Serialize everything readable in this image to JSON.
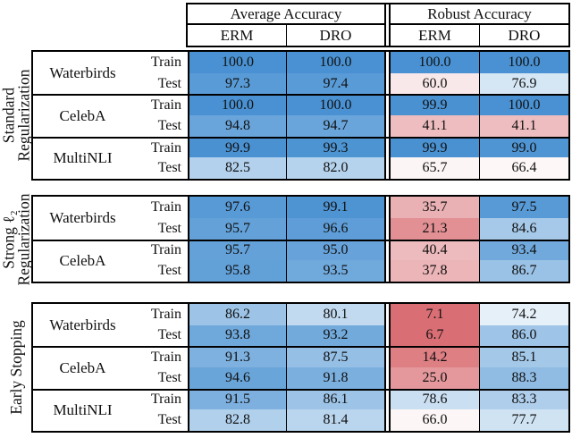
{
  "figure": {
    "header": {
      "average_label": "Average Accuracy",
      "robust_label": "Robust Accuracy",
      "erm_label": "ERM",
      "dro_label": "DRO"
    }
  },
  "chart_data": {
    "type": "table",
    "subtype": "heatmap-table",
    "column_groups": [
      "Average Accuracy",
      "Robust Accuracy"
    ],
    "columns": [
      "Average Accuracy ERM",
      "Average Accuracy DRO",
      "Robust Accuracy ERM",
      "Robust Accuracy DRO"
    ],
    "heatmap": {
      "midpoint": 70,
      "high_value": 100,
      "low_value": 0,
      "high_color": "#4991D2",
      "low_color": "#D55F65",
      "mid_color": "#FFFFFF"
    },
    "blocks": [
      {
        "group_label_lines": [
          "Standard",
          "Regularization"
        ],
        "datasets": [
          {
            "name": "Waterbirds",
            "rows": [
              {
                "split": "Train",
                "values": [
                  100.0,
                  100.0,
                  100.0,
                  100.0
                ]
              },
              {
                "split": "Test",
                "values": [
                  97.3,
                  97.4,
                  60.0,
                  76.9
                ]
              }
            ]
          },
          {
            "name": "CelebA",
            "rows": [
              {
                "split": "Train",
                "values": [
                  100.0,
                  100.0,
                  99.9,
                  100.0
                ]
              },
              {
                "split": "Test",
                "values": [
                  94.8,
                  94.7,
                  41.1,
                  41.1
                ]
              }
            ]
          },
          {
            "name": "MultiNLI",
            "rows": [
              {
                "split": "Train",
                "values": [
                  99.9,
                  99.3,
                  99.9,
                  99.0
                ]
              },
              {
                "split": "Test",
                "values": [
                  82.5,
                  82.0,
                  65.7,
                  66.4
                ]
              }
            ]
          }
        ]
      },
      {
        "group_label_lines": [
          "Strong ℓ₂",
          "Regularization"
        ],
        "datasets": [
          {
            "name": "Waterbirds",
            "rows": [
              {
                "split": "Train",
                "values": [
                  97.6,
                  99.1,
                  35.7,
                  97.5
                ]
              },
              {
                "split": "Test",
                "values": [
                  95.7,
                  96.6,
                  21.3,
                  84.6
                ]
              }
            ]
          },
          {
            "name": "CelebA",
            "rows": [
              {
                "split": "Train",
                "values": [
                  95.7,
                  95.0,
                  40.4,
                  93.4
                ]
              },
              {
                "split": "Test",
                "values": [
                  95.8,
                  93.5,
                  37.8,
                  86.7
                ]
              }
            ]
          }
        ]
      },
      {
        "group_label_lines": [
          "Early Stopping"
        ],
        "datasets": [
          {
            "name": "Waterbirds",
            "rows": [
              {
                "split": "Train",
                "values": [
                  86.2,
                  80.1,
                  7.1,
                  74.2
                ]
              },
              {
                "split": "Test",
                "values": [
                  93.8,
                  93.2,
                  6.7,
                  86.0
                ]
              }
            ]
          },
          {
            "name": "CelebA",
            "rows": [
              {
                "split": "Train",
                "values": [
                  91.3,
                  87.5,
                  14.2,
                  85.1
                ]
              },
              {
                "split": "Test",
                "values": [
                  94.6,
                  91.8,
                  25.0,
                  88.3
                ]
              }
            ]
          },
          {
            "name": "MultiNLI",
            "rows": [
              {
                "split": "Train",
                "values": [
                  91.5,
                  86.1,
                  78.6,
                  83.3
                ]
              },
              {
                "split": "Test",
                "values": [
                  82.8,
                  81.4,
                  66.0,
                  77.7
                ]
              }
            ]
          }
        ]
      }
    ]
  }
}
